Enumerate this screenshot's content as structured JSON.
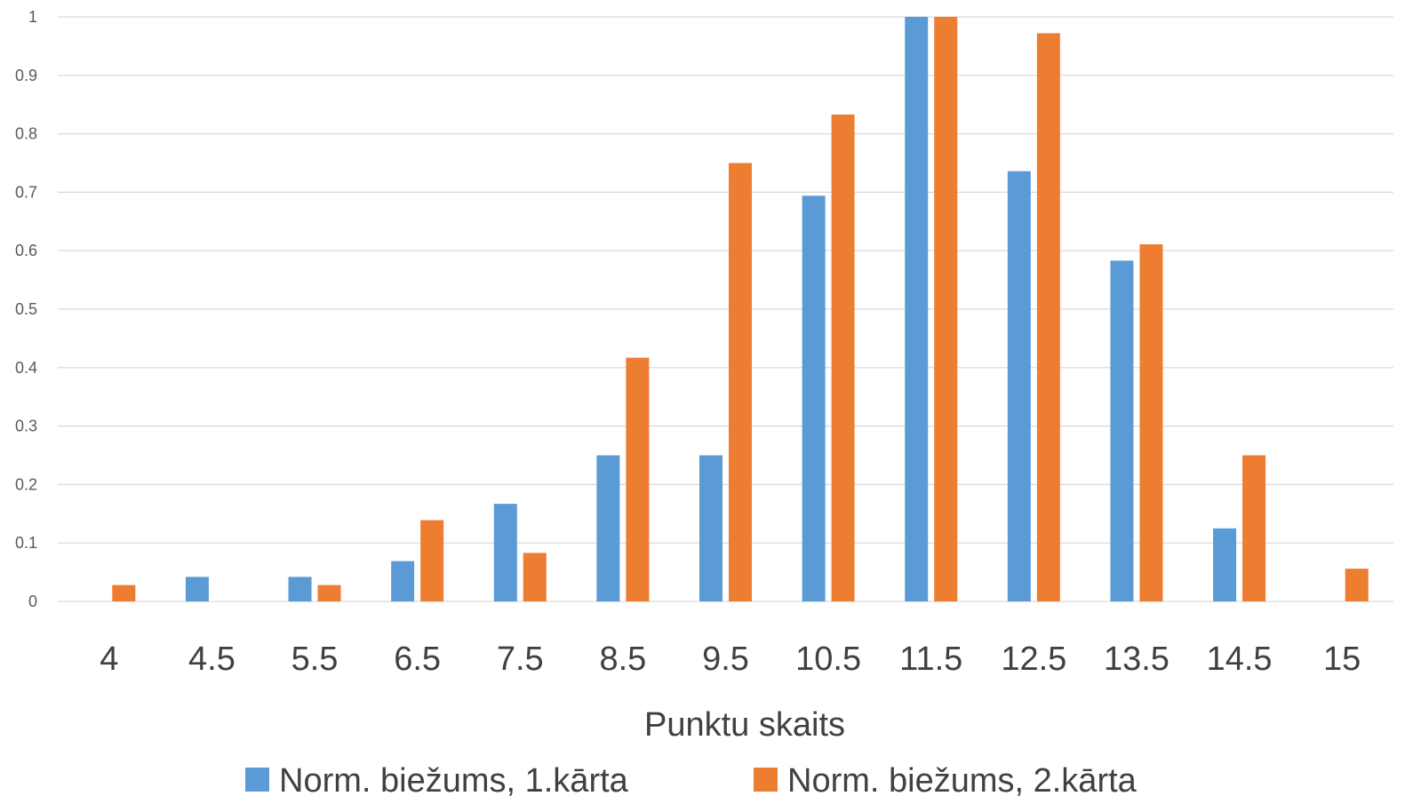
{
  "chart_data": {
    "type": "bar",
    "categories": [
      "4",
      "4.5",
      "5.5",
      "6.5",
      "7.5",
      "8.5",
      "9.5",
      "10.5",
      "11.5",
      "12.5",
      "13.5",
      "14.5",
      "15"
    ],
    "series": [
      {
        "name": "Norm. biežums, 1.kārta",
        "color": "#5b9bd5",
        "values": [
          0,
          0.042,
          0.042,
          0.069,
          0.167,
          0.25,
          0.25,
          0.694,
          1.0,
          0.736,
          0.583,
          0.125,
          0
        ]
      },
      {
        "name": "Norm. biežums, 2.kārta",
        "color": "#ed7d31",
        "values": [
          0.028,
          0,
          0.028,
          0.139,
          0.083,
          0.417,
          0.75,
          0.833,
          1.0,
          0.972,
          0.611,
          0.25,
          0.056
        ]
      }
    ],
    "title": "",
    "xlabel": "Punktu skaits",
    "ylabel": "",
    "ylim": [
      0,
      1
    ],
    "yticks": [
      "0",
      "0.1",
      "0.2",
      "0.3",
      "0.4",
      "0.5",
      "0.6",
      "0.7",
      "0.8",
      "0.9",
      "1"
    ],
    "grid": true,
    "legend_position": "bottom"
  }
}
